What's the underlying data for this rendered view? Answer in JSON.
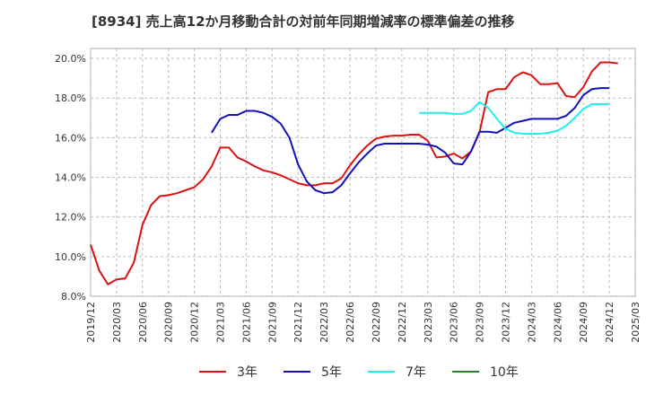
{
  "chart_data": {
    "type": "line",
    "title": "[8934]  売上高12か月移動合計の対前年同期増減率の標準偏差の推移",
    "xlabel": "",
    "ylabel": "",
    "ylim": [
      8.0,
      20.5
    ],
    "y_ticks": [
      8.0,
      10.0,
      12.0,
      14.0,
      16.0,
      18.0,
      20.0
    ],
    "y_tick_labels": [
      "8.0%",
      "10.0%",
      "12.0%",
      "14.0%",
      "16.0%",
      "18.0%",
      "20.0%"
    ],
    "x_ticks": [
      "2019/12",
      "2020/03",
      "2020/06",
      "2020/09",
      "2020/12",
      "2021/03",
      "2021/06",
      "2021/09",
      "2021/12",
      "2022/03",
      "2022/06",
      "2022/09",
      "2022/12",
      "2023/03",
      "2023/06",
      "2023/09",
      "2023/12",
      "2024/03",
      "2024/06",
      "2024/09",
      "2024/12",
      "2025/03"
    ],
    "x_start": "2019/12",
    "grid": true,
    "legend_position": "bottom",
    "series": [
      {
        "name": "3年",
        "color": "#dd1111",
        "start": "2019/12",
        "values": [
          10.6,
          9.3,
          8.6,
          8.85,
          8.9,
          9.7,
          11.6,
          12.6,
          13.05,
          13.1,
          13.2,
          13.35,
          13.5,
          13.9,
          14.55,
          15.5,
          15.5,
          15.0,
          14.8,
          14.55,
          14.35,
          14.25,
          14.1,
          13.9,
          13.7,
          13.6,
          13.6,
          13.7,
          13.7,
          13.95,
          14.6,
          15.15,
          15.6,
          15.95,
          16.05,
          16.1,
          16.1,
          16.15,
          16.15,
          15.85,
          15.0,
          15.05,
          15.2,
          14.95,
          15.3,
          16.3,
          18.3,
          18.45,
          18.45,
          19.05,
          19.3,
          19.15,
          18.7,
          18.7,
          18.75,
          18.1,
          18.05,
          18.55,
          19.35,
          19.8,
          19.8,
          19.75
        ]
      },
      {
        "name": "5年",
        "color": "#1111bb",
        "start": "2021/02",
        "values": [
          16.25,
          16.95,
          17.15,
          17.15,
          17.35,
          17.35,
          17.25,
          17.05,
          16.7,
          16.0,
          14.65,
          13.8,
          13.35,
          13.2,
          13.25,
          13.6,
          14.2,
          14.75,
          15.2,
          15.6,
          15.7,
          15.7,
          15.7,
          15.7,
          15.7,
          15.65,
          15.55,
          15.25,
          14.7,
          14.65,
          15.3,
          16.3,
          16.3,
          16.25,
          16.5,
          16.75,
          16.85,
          16.95,
          16.95,
          16.95,
          16.95,
          17.1,
          17.5,
          18.15,
          18.45,
          18.5,
          18.5
        ]
      },
      {
        "name": "7年",
        "color": "#22eeee",
        "start": "2023/02",
        "values": [
          17.25,
          17.25,
          17.25,
          17.25,
          17.2,
          17.2,
          17.35,
          17.8,
          17.5,
          16.95,
          16.45,
          16.25,
          16.2,
          16.2,
          16.2,
          16.25,
          16.35,
          16.6,
          17.0,
          17.45,
          17.7,
          17.7,
          17.7
        ]
      },
      {
        "name": "10年",
        "color": "#228822",
        "start": "2024/12",
        "values": []
      }
    ]
  }
}
